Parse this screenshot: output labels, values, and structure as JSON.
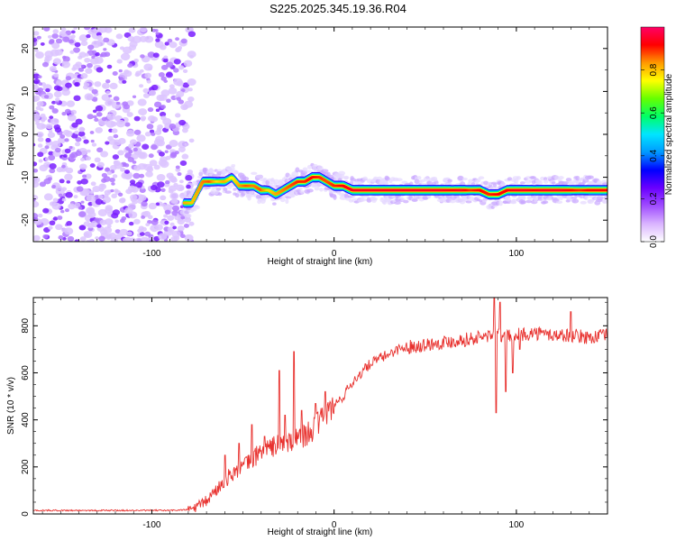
{
  "title": "S225.2025.345.19.36.R04",
  "chart_data": [
    {
      "type": "heatmap",
      "xlabel": "Height of straight line (km)",
      "ylabel": "Frequency (Hz)",
      "xlim": [
        -165,
        150
      ],
      "ylim": [
        -25,
        25
      ],
      "xticks": [
        -100,
        0,
        100
      ],
      "yticks": [
        -20,
        -10,
        0,
        10,
        20
      ],
      "colorbar": {
        "label": "Normalized spectral amplitude",
        "range": [
          0,
          1
        ],
        "ticks": [
          "0.0",
          "0.2",
          "0.4",
          "0.6",
          "0.8"
        ],
        "colormap": [
          "#ffffff",
          "#d9b3ff",
          "#a04dff",
          "#6a00ff",
          "#0000ff",
          "#0099ff",
          "#00e5ff",
          "#00ff66",
          "#66ff00",
          "#ffff00",
          "#ff9900",
          "#ff0000",
          "#ff0066"
        ]
      },
      "noise_region_km": [
        -165,
        -80
      ],
      "ridge": {
        "x": [
          -82,
          -78,
          -72,
          -68,
          -64,
          -60,
          -56,
          -52,
          -48,
          -44,
          -40,
          -36,
          -32,
          -28,
          -24,
          -20,
          -16,
          -12,
          -8,
          -4,
          0,
          5,
          10,
          20,
          30,
          40,
          50,
          60,
          65,
          70,
          75,
          80,
          85,
          90,
          95,
          100,
          105,
          110,
          115,
          120,
          125,
          130,
          135,
          140,
          145,
          150
        ],
        "y": [
          -16,
          -16,
          -11,
          -11,
          -11,
          -11,
          -10,
          -12,
          -12,
          -12,
          -13,
          -13,
          -14,
          -13,
          -12,
          -11,
          -11,
          -10,
          -10,
          -11,
          -12,
          -12,
          -13,
          -13,
          -13,
          -13,
          -13,
          -13,
          -13,
          -13,
          -13,
          -13,
          -14,
          -14,
          -13,
          -13,
          -13,
          -13,
          -13,
          -13,
          -13,
          -13,
          -13,
          -13,
          -13,
          -13
        ],
        "amplitude": [
          0.7,
          0.65,
          0.75,
          0.8,
          0.6,
          0.7,
          0.55,
          0.7,
          0.8,
          0.75,
          0.8,
          0.6,
          0.7,
          0.75,
          0.8,
          0.85,
          0.85,
          0.9,
          0.85,
          0.8,
          0.85,
          0.9,
          0.95,
          0.95,
          0.95,
          0.95,
          0.95,
          0.95,
          0.9,
          0.95,
          0.85,
          0.9,
          0.85,
          0.9,
          0.9,
          0.95,
          0.95,
          0.9,
          0.95,
          0.95,
          0.95,
          0.9,
          0.85,
          0.9,
          0.9,
          0.9
        ]
      }
    },
    {
      "type": "line",
      "xlabel": "Height of straight line (km)",
      "ylabel": "SNR (10 * v/v)",
      "xlim": [
        -165,
        150
      ],
      "ylim": [
        0,
        920
      ],
      "xticks": [
        -100,
        0,
        100
      ],
      "yticks": [
        0,
        200,
        400,
        600,
        800
      ],
      "color": "#e8312e",
      "x": [
        -165,
        -150,
        -130,
        -110,
        -90,
        -80,
        -75,
        -70,
        -65,
        -60,
        -55,
        -50,
        -45,
        -40,
        -35,
        -30,
        -25,
        -20,
        -15,
        -10,
        -5,
        0,
        5,
        10,
        15,
        20,
        25,
        30,
        35,
        40,
        50,
        60,
        70,
        80,
        86,
        90,
        94,
        100,
        110,
        120,
        130,
        140,
        150
      ],
      "y": [
        15,
        15,
        15,
        15,
        15,
        18,
        30,
        55,
        100,
        140,
        180,
        200,
        230,
        270,
        280,
        300,
        300,
        320,
        340,
        370,
        420,
        460,
        500,
        560,
        600,
        640,
        660,
        680,
        700,
        710,
        720,
        730,
        740,
        750,
        760,
        760,
        750,
        760,
        770,
        760,
        760,
        750,
        760
      ],
      "spikes": [
        {
          "x": -60,
          "y": 250
        },
        {
          "x": -52,
          "y": 300
        },
        {
          "x": -45,
          "y": 380
        },
        {
          "x": -38,
          "y": 330
        },
        {
          "x": -30,
          "y": 610
        },
        {
          "x": -27,
          "y": 420
        },
        {
          "x": -22,
          "y": 690
        },
        {
          "x": -18,
          "y": 440
        },
        {
          "x": -10,
          "y": 470
        },
        {
          "x": -5,
          "y": 520
        },
        {
          "x": 88,
          "y": 920
        },
        {
          "x": 89,
          "y": 430
        },
        {
          "x": 91,
          "y": 900
        },
        {
          "x": 94,
          "y": 520
        },
        {
          "x": 98,
          "y": 600
        },
        {
          "x": 102,
          "y": 700
        },
        {
          "x": 130,
          "y": 860
        }
      ]
    }
  ]
}
